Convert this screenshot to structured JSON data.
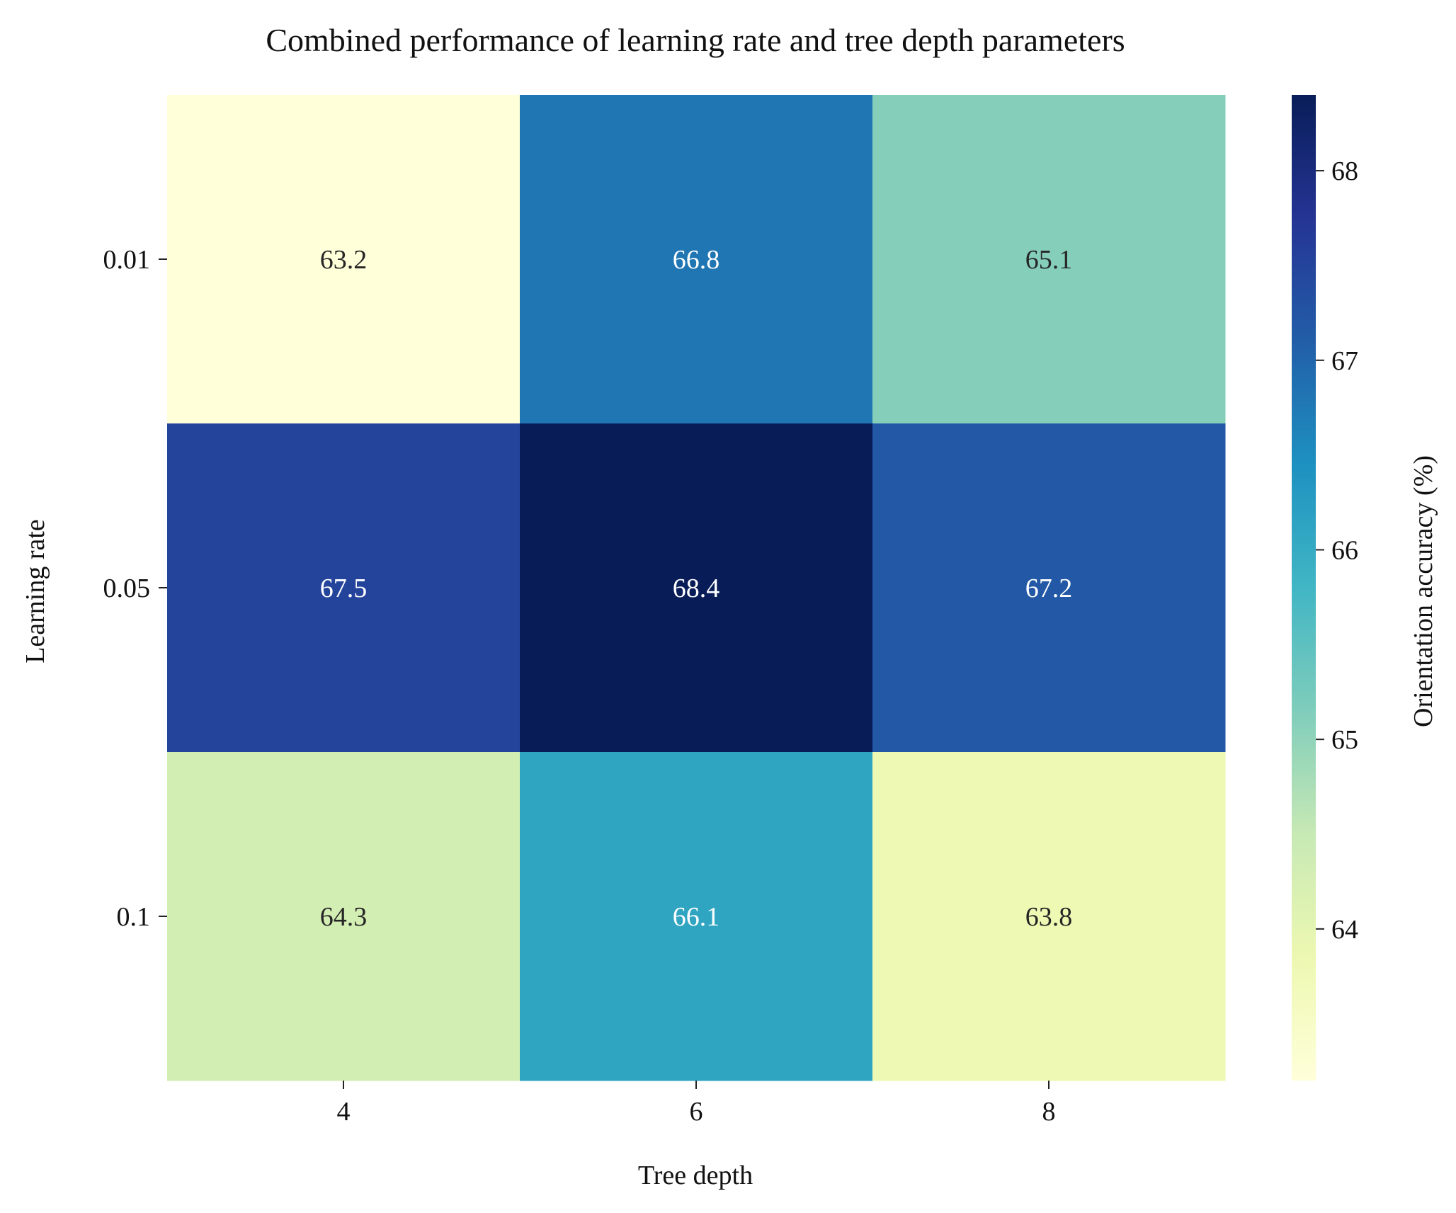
{
  "chart_data": {
    "type": "heatmap",
    "title": "Combined performance of learning rate and tree depth parameters",
    "xlabel": "Tree depth",
    "ylabel": "Learning rate",
    "x_categories": [
      "4",
      "6",
      "8"
    ],
    "y_categories": [
      "0.01",
      "0.05",
      "0.1"
    ],
    "values": [
      [
        63.2,
        66.8,
        65.1
      ],
      [
        67.5,
        68.4,
        67.2
      ],
      [
        64.3,
        66.1,
        63.8
      ]
    ],
    "cell_labels": [
      [
        "63.2",
        "66.8",
        "65.1"
      ],
      [
        "67.5",
        "68.4",
        "67.2"
      ],
      [
        "64.3",
        "66.1",
        "63.8"
      ]
    ],
    "colormap": "YlGnBu",
    "colorbar": {
      "label": "Orientation accuracy (%)",
      "range": [
        63.2,
        68.4
      ],
      "ticks": [
        "64",
        "65",
        "66",
        "67",
        "68"
      ]
    },
    "legend": "none",
    "grid": false
  }
}
